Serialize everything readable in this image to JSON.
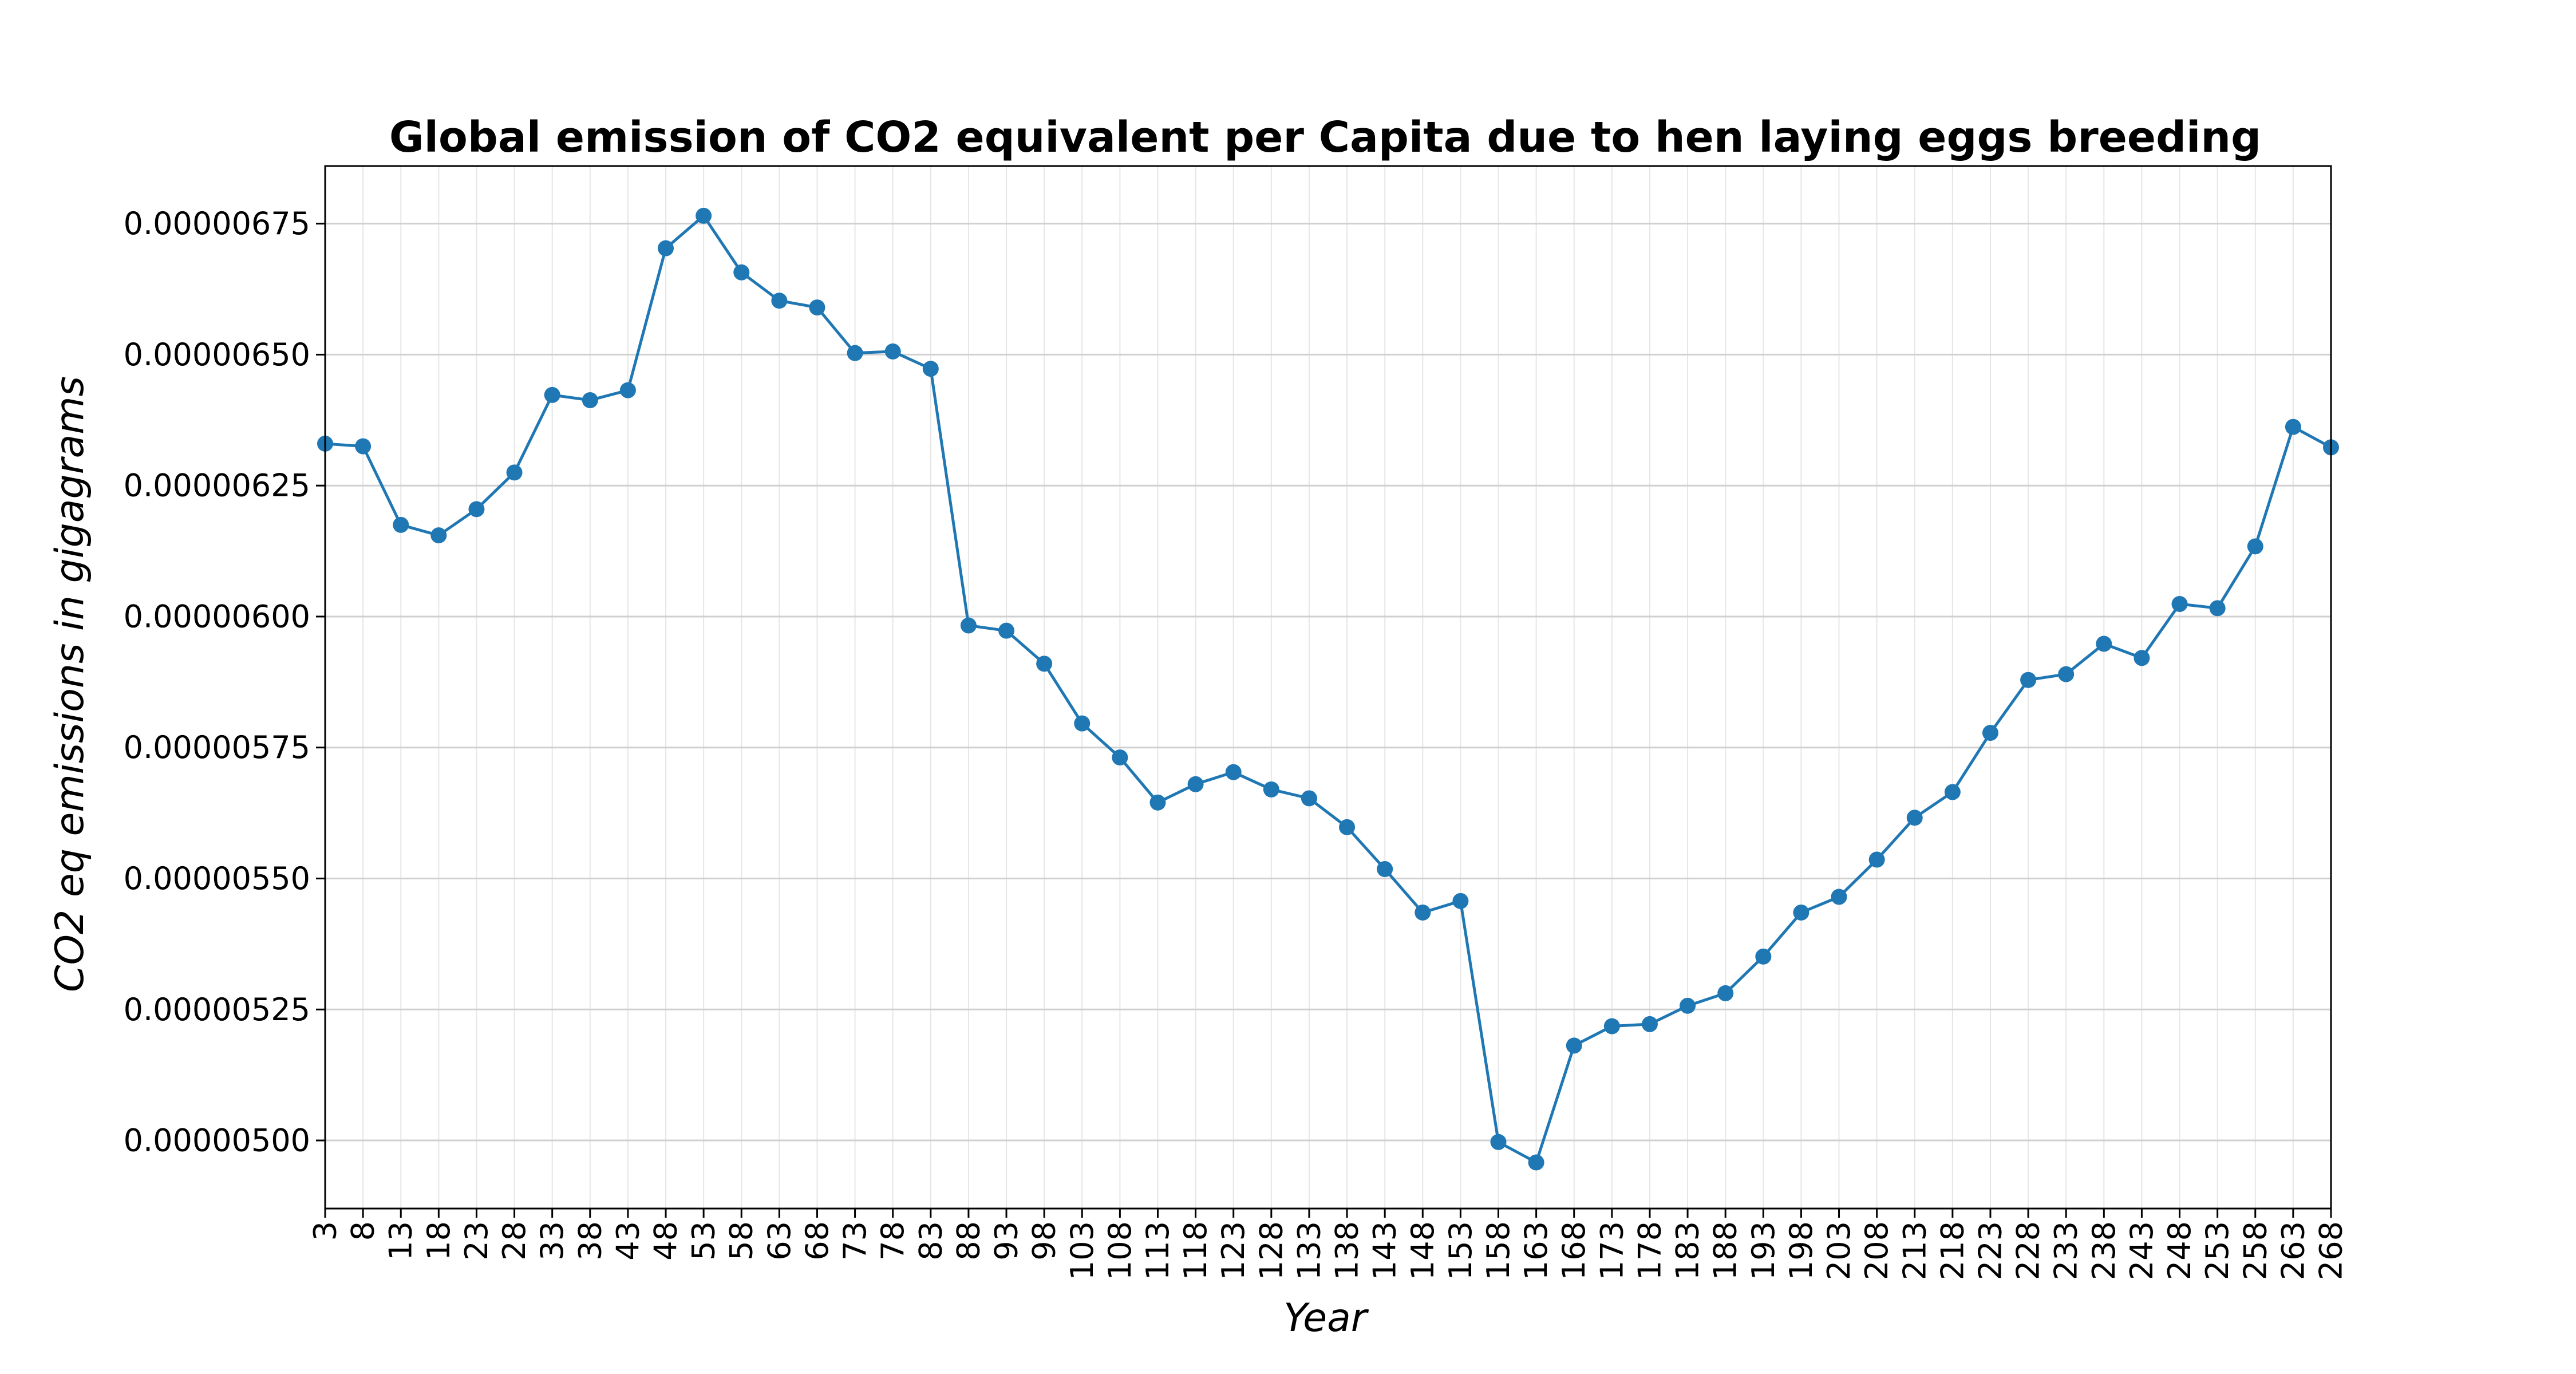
{
  "chart_data": {
    "type": "line",
    "title": "Global emission of CO2 equivalent per Capita due to hen laying eggs breeding",
    "xlabel": "Year",
    "ylabel": "CO2 eq emissions in gigagrams",
    "xlim": [
      3,
      268
    ],
    "ylim": [
      4.87e-06,
      6.86e-06
    ],
    "grid": true,
    "line_color": "#1f77b4",
    "marker": "circle",
    "x_ticks": [
      3,
      8,
      13,
      18,
      23,
      28,
      33,
      38,
      43,
      48,
      53,
      58,
      63,
      68,
      73,
      78,
      83,
      88,
      93,
      98,
      103,
      108,
      113,
      118,
      123,
      128,
      133,
      138,
      143,
      148,
      153,
      158,
      163,
      168,
      173,
      178,
      183,
      188,
      193,
      198,
      203,
      208,
      213,
      218,
      223,
      228,
      233,
      238,
      243,
      248,
      253,
      258,
      263,
      268
    ],
    "y_ticks": [
      {
        "value": 5e-06,
        "label": "0.00000500"
      },
      {
        "value": 5.25e-06,
        "label": "0.00000525"
      },
      {
        "value": 5.5e-06,
        "label": "0.00000550"
      },
      {
        "value": 5.75e-06,
        "label": "0.00000575"
      },
      {
        "value": 6e-06,
        "label": "0.00000600"
      },
      {
        "value": 6.25e-06,
        "label": "0.00000625"
      },
      {
        "value": 6.5e-06,
        "label": "0.00000650"
      },
      {
        "value": 6.75e-06,
        "label": "0.00000675"
      }
    ],
    "x": [
      3,
      8,
      13,
      18,
      23,
      28,
      33,
      38,
      43,
      48,
      53,
      58,
      63,
      68,
      73,
      78,
      83,
      88,
      93,
      98,
      103,
      108,
      113,
      118,
      123,
      128,
      133,
      138,
      143,
      148,
      153,
      158,
      163,
      168,
      173,
      178,
      183,
      188,
      193,
      198,
      203,
      208,
      213,
      218,
      223,
      228,
      233,
      238,
      243,
      248,
      253,
      258,
      263,
      268
    ],
    "values": [
      6.33e-06,
      6.325e-06,
      6.175e-06,
      6.155e-06,
      6.205e-06,
      6.275e-06,
      6.423e-06,
      6.413e-06,
      6.432e-06,
      6.703e-06,
      6.765e-06,
      6.657e-06,
      6.603e-06,
      6.59e-06,
      6.503e-06,
      6.506e-06,
      6.473e-06,
      5.983e-06,
      5.973e-06,
      5.91e-06,
      5.796e-06,
      5.731e-06,
      5.645e-06,
      5.68e-06,
      5.703e-06,
      5.67e-06,
      5.653e-06,
      5.598e-06,
      5.518e-06,
      5.435e-06,
      5.457e-06,
      4.997e-06,
      4.958e-06,
      5.181e-06,
      5.218e-06,
      5.222e-06,
      5.257e-06,
      5.281e-06,
      5.351e-06,
      5.435e-06,
      5.465e-06,
      5.536e-06,
      5.616e-06,
      5.665e-06,
      5.778e-06,
      5.879e-06,
      5.89e-06,
      5.948e-06,
      5.921e-06,
      6.024e-06,
      6.016e-06,
      6.134e-06,
      6.362e-06,
      6.323e-06
    ]
  }
}
